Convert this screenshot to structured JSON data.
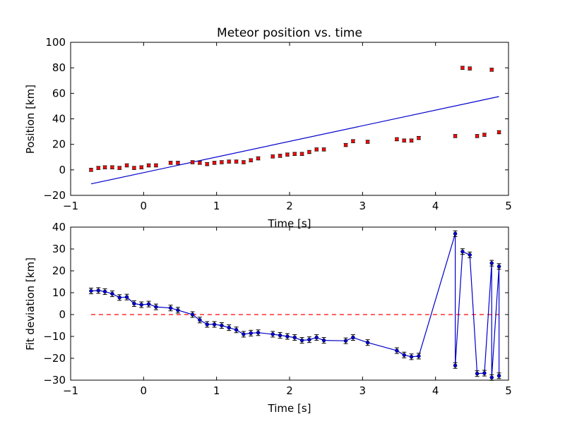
{
  "chart_data": [
    {
      "type": "scatter",
      "title": "Meteor position vs. time",
      "xlabel": "Time [s]",
      "ylabel": "Position [km]",
      "xlim": [
        -1,
        5
      ],
      "ylim": [
        -20,
        100
      ],
      "xticks": [
        "−1",
        "0",
        "1",
        "2",
        "3",
        "4",
        "5"
      ],
      "yticks": [
        "−20",
        "0",
        "20",
        "40",
        "60",
        "80",
        "100"
      ],
      "grid": false,
      "colors": {
        "points": "#ff0000",
        "fit": "#0000cc"
      },
      "series": [
        {
          "kind": "points_with_error",
          "error": 1.2,
          "x": [
            -0.72,
            -0.62,
            -0.53,
            -0.43,
            -0.33,
            -0.23,
            -0.13,
            -0.03,
            0.07,
            0.17,
            0.37,
            0.47,
            0.67,
            0.77,
            0.87,
            0.97,
            1.07,
            1.17,
            1.27,
            1.37,
            1.47,
            1.57,
            1.77,
            1.87,
            1.97,
            2.07,
            2.17,
            2.27,
            2.37,
            2.47,
            2.77,
            2.87,
            3.07,
            3.47,
            3.57,
            3.67,
            3.77,
            4.27,
            4.37,
            4.47,
            4.57,
            4.67,
            4.77,
            4.87
          ],
          "y": [
            0.0,
            1.5,
            2.0,
            2.0,
            1.5,
            3.5,
            1.5,
            2.0,
            3.5,
            3.5,
            5.5,
            5.5,
            6.0,
            5.5,
            4.5,
            5.5,
            6.0,
            6.5,
            6.5,
            6.0,
            7.5,
            9.0,
            10.5,
            11.0,
            12.0,
            12.5,
            12.5,
            14.0,
            16.0,
            16.0,
            19.5,
            22.5,
            22.0,
            24.0,
            23.0,
            23.0,
            25.0,
            26.5,
            80.0,
            79.5,
            26.5,
            27.5,
            78.5,
            29.5
          ]
        },
        {
          "kind": "fit_line",
          "x": [
            -0.72,
            4.87
          ],
          "y": [
            -11.0,
            57.5
          ]
        }
      ]
    },
    {
      "type": "line",
      "xlabel": "Time [s]",
      "ylabel": "Fit deviation [km]",
      "xlim": [
        -1,
        5
      ],
      "ylim": [
        -30,
        40
      ],
      "xticks": [
        "−1",
        "0",
        "1",
        "2",
        "3",
        "4",
        "5"
      ],
      "yticks": [
        "−30",
        "−20",
        "−10",
        "0",
        "10",
        "20",
        "30",
        "40"
      ],
      "grid": false,
      "colors": {
        "series": "#0000cc",
        "zero": "#ff0000"
      },
      "reference_line_y": 0,
      "series": [
        {
          "kind": "line_with_error",
          "error": 1.3,
          "x": [
            -0.72,
            -0.62,
            -0.53,
            -0.43,
            -0.33,
            -0.23,
            -0.13,
            -0.03,
            0.07,
            0.17,
            0.37,
            0.47,
            0.67,
            0.77,
            0.87,
            0.97,
            1.07,
            1.17,
            1.27,
            1.37,
            1.47,
            1.57,
            1.77,
            1.87,
            1.97,
            2.07,
            2.17,
            2.27,
            2.37,
            2.47,
            2.77,
            2.87,
            3.07,
            3.47,
            3.57,
            3.67,
            3.77,
            4.27,
            4.27,
            4.37,
            4.47,
            4.57,
            4.67,
            4.77,
            4.77,
            4.87,
            4.87
          ],
          "y": [
            10.8,
            11.0,
            10.5,
            9.5,
            7.8,
            8.0,
            5.0,
            4.5,
            4.8,
            3.5,
            3.0,
            2.0,
            0.0,
            -2.5,
            -4.5,
            -4.5,
            -5.0,
            -6.0,
            -7.0,
            -9.0,
            -8.5,
            -8.3,
            -9.0,
            -9.5,
            -10.0,
            -10.5,
            -11.8,
            -11.5,
            -10.5,
            -11.8,
            -12.0,
            -10.5,
            -12.8,
            -16.5,
            -18.5,
            -19.3,
            -19.0,
            37.0,
            -23.3,
            28.8,
            27.3,
            -27.0,
            -26.8,
            23.5,
            -28.8,
            22.0,
            -28.0
          ]
        }
      ]
    }
  ]
}
